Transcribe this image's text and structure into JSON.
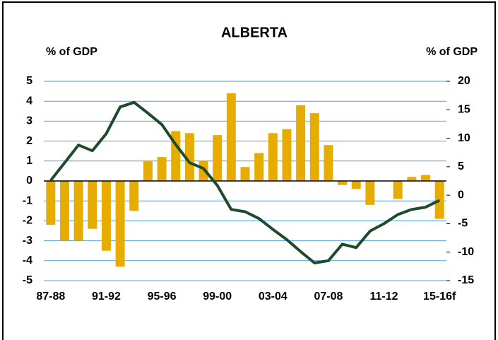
{
  "chart_data": {
    "type": "combo",
    "title": "ALBERTA",
    "y_label": "% of GDP",
    "y2_label": "% of GDP",
    "categories": [
      "87-88",
      null,
      null,
      null,
      "91-92",
      null,
      null,
      null,
      "95-96",
      null,
      null,
      null,
      "99-00",
      null,
      null,
      null,
      "03-04",
      null,
      null,
      null,
      "07-08",
      null,
      null,
      null,
      "11-12",
      null,
      null,
      null,
      "15-16f"
    ],
    "series": [
      {
        "type": "bar",
        "axis": "y",
        "color": "#e6ac00",
        "values": [
          -2.2,
          -3.0,
          -3.0,
          -2.4,
          -3.5,
          -4.3,
          -1.5,
          1.0,
          1.2,
          2.5,
          2.4,
          1.0,
          2.3,
          4.4,
          0.7,
          1.4,
          2.4,
          2.6,
          3.8,
          3.4,
          1.8,
          -0.2,
          -0.4,
          -1.2,
          0,
          -0.9,
          0.2,
          0.3,
          -1.9
        ]
      },
      {
        "type": "line",
        "axis": "y2",
        "color": "#1f4a2c",
        "values": [
          2.6,
          5.7,
          8.8,
          7.8,
          10.8,
          15.5,
          16.3,
          14.4,
          12.4,
          8.9,
          5.7,
          4.7,
          1.7,
          -2.5,
          -2.9,
          -4.1,
          -6.0,
          -7.8,
          -9.9,
          -11.9,
          -11.5,
          -8.6,
          -9.2,
          -6.3,
          -5.0,
          -3.4,
          -2.5,
          -2.1,
          -0.9
        ]
      }
    ],
    "ylim": [
      -5,
      5
    ],
    "yticks": [
      -5,
      -4,
      -3,
      -2,
      -1,
      0,
      1,
      2,
      3,
      4,
      5
    ],
    "y2lim": [
      -15,
      20
    ],
    "y2ticks": [
      -15,
      -10,
      -5,
      0,
      5,
      10,
      15,
      20
    ],
    "grid": true,
    "grid_color": "#4ba3d6"
  }
}
